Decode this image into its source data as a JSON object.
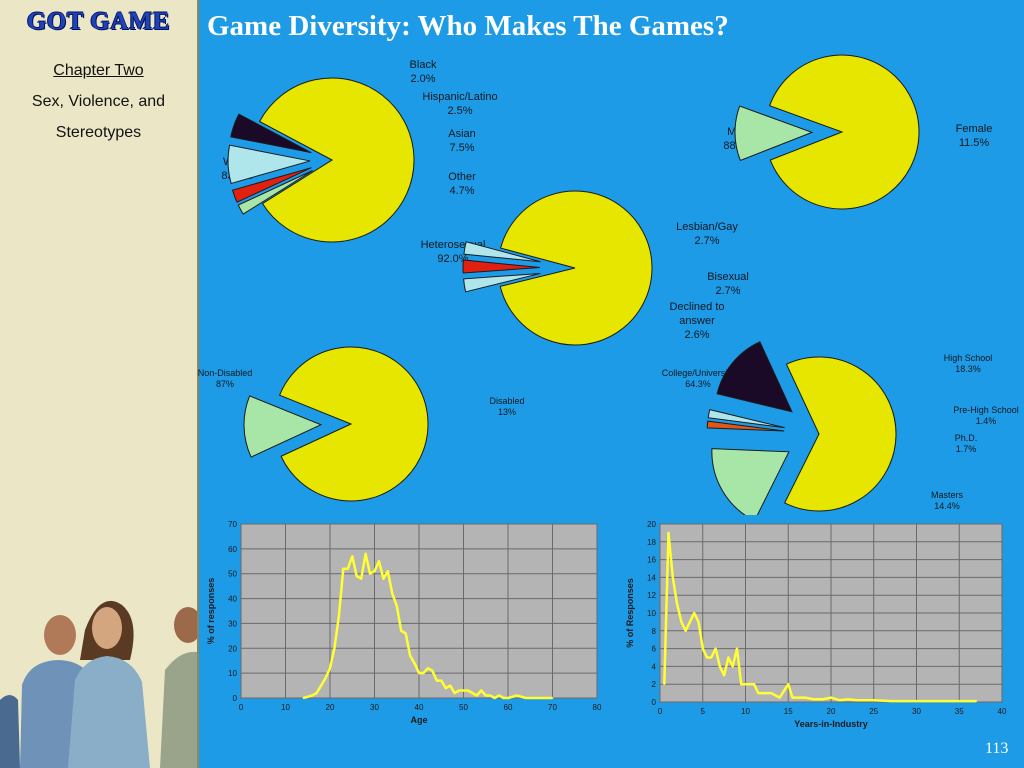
{
  "sidebar": {
    "logo": "GOT GAME",
    "chapter_label": "Chapter Two",
    "chapter_line1": "Sex, Violence, and",
    "chapter_line2": "Stereotypes"
  },
  "title": "Game Diversity: Who Makes The Games?",
  "page_number": "113",
  "colors": {
    "background": "#1e9be6",
    "yellow": "#e6e600",
    "lightgreen": "#a8e6a8",
    "red": "#e02010",
    "lightblue": "#aee6ec",
    "dark": "#1a0a28",
    "orange": "#e05818",
    "line": "#ffff33",
    "plot_bg": "#b4b4b4"
  },
  "chart_data": [
    {
      "type": "pie",
      "slices": [
        {
          "label": "White",
          "value": "83.3%",
          "pct": 83.3
        },
        {
          "label": "Black",
          "value": "2.0%",
          "pct": 2.0
        },
        {
          "label": "Hispanic/Latino",
          "value": "2.5%",
          "pct": 2.5
        },
        {
          "label": "Asian",
          "value": "7.5%",
          "pct": 7.5
        },
        {
          "label": "Other",
          "value": "4.7%",
          "pct": 4.7
        }
      ]
    },
    {
      "type": "pie",
      "slices": [
        {
          "label": "Male",
          "value": "88.5%",
          "pct": 88.5
        },
        {
          "label": "Female",
          "value": "11.5%",
          "pct": 11.5
        }
      ]
    },
    {
      "type": "pie",
      "slices": [
        {
          "label": "Heterosexual",
          "value": "92.0%",
          "pct": 92.0
        },
        {
          "label": "Lesbian/Gay",
          "value": "2.7%",
          "pct": 2.7
        },
        {
          "label": "Bisexual",
          "value": "2.7%",
          "pct": 2.7
        },
        {
          "label": "Declined to answer",
          "value": "2.6%",
          "pct": 2.6
        }
      ]
    },
    {
      "type": "pie",
      "slices": [
        {
          "label": "Non-Disabled",
          "value": "87%",
          "pct": 87
        },
        {
          "label": "Disabled",
          "value": "13%",
          "pct": 13
        }
      ]
    },
    {
      "type": "pie",
      "slices": [
        {
          "label": "College/University",
          "value": "64.3%",
          "pct": 64.3
        },
        {
          "label": "High School",
          "value": "18.3%",
          "pct": 18.3
        },
        {
          "label": "Pre-High School",
          "value": "1.4%",
          "pct": 1.4
        },
        {
          "label": "Ph.D.",
          "value": "1.7%",
          "pct": 1.7
        },
        {
          "label": "Masters",
          "value": "14.4%",
          "pct": 14.4
        }
      ]
    },
    {
      "type": "line",
      "xlabel": "Age",
      "ylabel": "% of responses",
      "xlim": [
        0,
        80
      ],
      "ylim": [
        0,
        70
      ],
      "xticks": [
        0,
        10,
        20,
        30,
        40,
        50,
        60,
        70,
        80
      ],
      "yticks": [
        0,
        10,
        20,
        30,
        40,
        50,
        60,
        70
      ],
      "x": [
        14,
        16,
        17,
        18,
        19,
        20,
        21,
        22,
        23,
        24,
        25,
        26,
        27,
        28,
        29,
        30,
        31,
        32,
        33,
        34,
        35,
        36,
        37,
        38,
        39,
        40,
        41,
        42,
        43,
        44,
        45,
        46,
        47,
        48,
        49,
        50,
        51,
        52,
        53,
        54,
        55,
        56,
        57,
        58,
        59,
        60,
        62,
        64,
        66,
        68,
        70
      ],
      "y": [
        0,
        1,
        2,
        5,
        8,
        12,
        20,
        33,
        52,
        52,
        57,
        49,
        48,
        58,
        50,
        51,
        55,
        48,
        51,
        42,
        37,
        27,
        26,
        17,
        14,
        10,
        10,
        12,
        11,
        7,
        7,
        4,
        5,
        2,
        3,
        3,
        3,
        2,
        1,
        3,
        1,
        1,
        0,
        1,
        0,
        0,
        1,
        0,
        0,
        0,
        0
      ]
    },
    {
      "type": "line",
      "xlabel": "Years-in-Industry",
      "ylabel": "% of Responses",
      "xlim": [
        0,
        40
      ],
      "ylim": [
        0,
        20
      ],
      "xticks": [
        0,
        5,
        10,
        15,
        20,
        25,
        30,
        35,
        40
      ],
      "yticks": [
        0,
        2,
        4,
        6,
        8,
        10,
        12,
        14,
        16,
        18,
        20
      ],
      "x": [
        0.5,
        1,
        1.5,
        2,
        2.5,
        3,
        3.5,
        4,
        4.5,
        5,
        5.5,
        6,
        6.5,
        7,
        7.5,
        8,
        8.5,
        9,
        9.5,
        10,
        10.5,
        11,
        11.5,
        12,
        12.5,
        13,
        14,
        15,
        15.5,
        16,
        17,
        18,
        19,
        20,
        21,
        22,
        23,
        24,
        25,
        27,
        29,
        31,
        33,
        35,
        37
      ],
      "y": [
        2,
        19,
        14,
        11,
        9,
        8,
        9,
        10,
        9,
        6,
        5,
        5,
        6,
        4,
        3,
        5,
        4,
        6,
        2,
        2,
        2,
        2,
        1,
        1,
        1,
        1,
        0.5,
        2,
        0.5,
        0.5,
        0.5,
        0.3,
        0.3,
        0.5,
        0.2,
        0.3,
        0.2,
        0.2,
        0.2,
        0.1,
        0.1,
        0.1,
        0.1,
        0.1,
        0.1
      ]
    }
  ]
}
